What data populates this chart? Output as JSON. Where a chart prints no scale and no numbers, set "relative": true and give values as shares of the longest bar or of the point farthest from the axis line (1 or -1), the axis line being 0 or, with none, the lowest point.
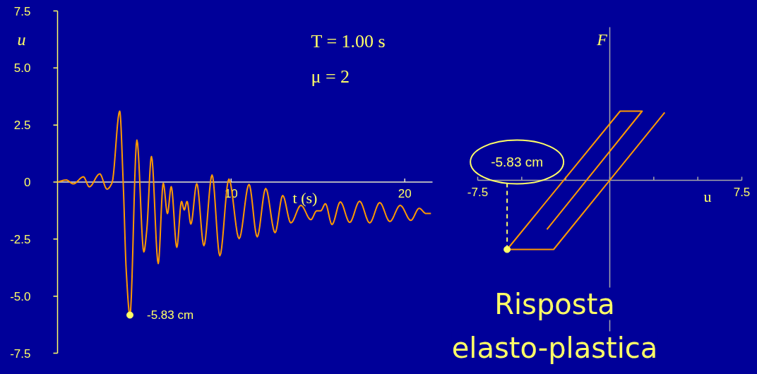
{
  "chart_data": [
    {
      "type": "line",
      "xlabel": "t (s)",
      "ylabel": "u",
      "xlim": [
        0,
        21.6
      ],
      "ylim": [
        -7.5,
        7.5
      ],
      "xticks": [
        10,
        20
      ],
      "yticks": [
        {
          "value": -7.5,
          "label": "-7.5"
        },
        {
          "value": -5,
          "label": "-5.0"
        },
        {
          "value": -2.5,
          "label": "-2.5"
        },
        0,
        {
          "value": 2.5,
          "label": "2.5"
        },
        {
          "value": 5,
          "label": "5.0"
        },
        {
          "value": 7.5,
          "label": "7.5"
        }
      ],
      "annotations": [
        "T = 1.00 s",
        "μ = 2",
        {
          "text": "-5.83 cm",
          "x": 4.17,
          "y": -5.83
        }
      ],
      "series": [
        {
          "color": "#ff9900",
          "x": [
            0,
            0.5,
            0.91,
            1.49,
            1.83,
            2.43,
            2.85,
            3.14,
            3.58,
            3.78,
            3.96,
            4.17,
            4.57,
            4.97,
            5.14,
            5.41,
            5.8,
            6.09,
            6.33,
            6.55,
            6.87,
            7.14,
            7.3,
            7.46,
            7.68,
            8.02,
            8.43,
            8.9,
            9.35,
            9.87,
            10.46,
            11.03,
            11.5,
            11.99,
            12.53,
            12.97,
            13.44,
            14.02,
            14.59,
            14.93,
            15.16,
            15.43,
            15.81,
            16.29,
            16.83,
            17.4,
            17.98,
            18.56,
            19.14,
            19.74,
            20.35,
            20.83,
            21.23,
            21.51
          ],
          "values": [
            0,
            0.09,
            -0.08,
            0.23,
            -0.21,
            0.36,
            -0.31,
            -0.03,
            3.11,
            0,
            -3.93,
            -5.83,
            1.84,
            -3.06,
            -2.09,
            1.12,
            -3.57,
            -0.05,
            -1.38,
            -0.2,
            -2.86,
            -0.85,
            -1.22,
            -0.85,
            -1.84,
            -0.07,
            -2.79,
            0.31,
            -3.23,
            0.13,
            -2.48,
            -0.1,
            -2.4,
            -0.28,
            -2.22,
            -0.59,
            -1.79,
            -1.02,
            -1.65,
            -1.26,
            -1.26,
            -0.95,
            -1.86,
            -0.87,
            -1.77,
            -0.84,
            -1.79,
            -0.9,
            -1.73,
            -1.02,
            -1.68,
            -1.15,
            -1.38,
            -1.38
          ]
        },
        {
          "type": "scatter",
          "color": "#ffff66",
          "x": [
            4.17
          ],
          "values": [
            -5.83
          ]
        }
      ]
    },
    {
      "type": "line",
      "relative": true,
      "xlabel": "u",
      "ylabel": "F",
      "xlim": [
        -7.5,
        7.5
      ],
      "xticks": [
        {
          "value": -7.5,
          "label": "-7.5"
        },
        {
          "value": -5,
          "label": null
        },
        {
          "value": -2.5,
          "label": null
        },
        {
          "value": 0,
          "label": null
        },
        {
          "value": 2.5,
          "label": null
        },
        {
          "value": 5,
          "label": null
        },
        {
          "value": 7.5,
          "label": "7.5"
        }
      ],
      "annotations": [
        {
          "text": "-5.83 cm",
          "x": -5.83,
          "y": -1
        },
        "Risposta elasto-plastica"
      ],
      "series": [
        {
          "color": "#ff9900",
          "x": [
            -3.57,
            1.84,
            0.59,
            -5.83,
            -3.19,
            3.12
          ],
          "values": [
            -0.71,
            1,
            1,
            -1,
            -1,
            0.98
          ]
        },
        {
          "type": "scatter",
          "color": "#ffff66",
          "x": [
            -5.83
          ],
          "values": [
            -1
          ]
        }
      ]
    }
  ]
}
